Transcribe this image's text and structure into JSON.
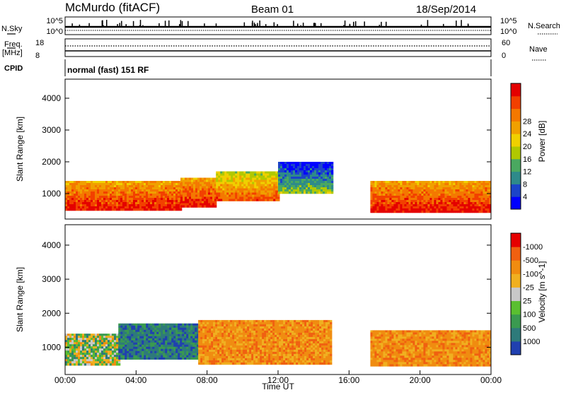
{
  "header": {
    "station": "McMurdo (fitACF)",
    "beam": "Beam 01",
    "date": "18/Sep/2014"
  },
  "top_panels": {
    "nsky_label": "N.Sky",
    "nsky_ticks": [
      "10^5",
      "10^0"
    ],
    "nsearch_label": "N.Search",
    "nsearch_ticks": [
      "10^5",
      "10^0"
    ],
    "freq_label_1": "Freq.",
    "freq_label_2": "[MHz]",
    "freq_ticks": [
      "18",
      "8"
    ],
    "nave_label": "Nave",
    "nave_ticks": [
      "60",
      "0"
    ],
    "cpid_label": "CPID",
    "cpid_value": "normal (fast) 151 RF"
  },
  "chart_data": [
    {
      "type": "heatmap",
      "title": "",
      "ylabel": "Slant Range [km]",
      "ylim": [
        200,
        4600
      ],
      "yticks": [
        "1000",
        "2000",
        "3000",
        "4000"
      ],
      "colorbar_label": "Power [dB]",
      "colorbar_ticks": [
        "4",
        "8",
        "12",
        "16",
        "20",
        "24",
        "28"
      ],
      "colorbar_colors": [
        "#0000ff",
        "#1c44c8",
        "#2e8a8a",
        "#4aa860",
        "#b0c800",
        "#f0d000",
        "#f0a000",
        "#f47800",
        "#f24000",
        "#e40000"
      ],
      "regions": [
        {
          "x_range_h": [
            0,
            6.5
          ],
          "range_km": [
            500,
            1400
          ],
          "level": "high"
        },
        {
          "x_range_h": [
            6.5,
            8.5
          ],
          "range_km": [
            600,
            1500
          ],
          "level": "high"
        },
        {
          "x_range_h": [
            8.5,
            12
          ],
          "range_km": [
            800,
            1700
          ],
          "level": "medium"
        },
        {
          "x_range_h": [
            12,
            15
          ],
          "range_km": [
            1000,
            2000
          ],
          "level": "low"
        },
        {
          "x_range_h": [
            17.2,
            24
          ],
          "range_km": [
            450,
            1400
          ],
          "level": "high"
        }
      ]
    },
    {
      "type": "heatmap",
      "title": "",
      "xlabel": "Time UT",
      "ylabel": "Slant Range [km]",
      "xticks": [
        "00:00",
        "04:00",
        "08:00",
        "12:00",
        "16:00",
        "20:00",
        "00:00"
      ],
      "ylim": [
        200,
        4600
      ],
      "yticks": [
        "1000",
        "2000",
        "3000",
        "4000"
      ],
      "colorbar_label": "Velocity [m s^-1]",
      "colorbar_ticks": [
        "1000",
        "500",
        "100",
        "25",
        "-25",
        "-100",
        "-500",
        "-1000"
      ],
      "colorbar_colors": [
        "#2040b0",
        "#2e7a7a",
        "#3a9a50",
        "#5abf30",
        "#c8c8c8",
        "#f0b020",
        "#f08c10",
        "#f06010",
        "#e60000"
      ],
      "regions": [
        {
          "x_range_h": [
            0,
            3
          ],
          "range_km": [
            500,
            1400
          ],
          "sign": "mixed"
        },
        {
          "x_range_h": [
            3,
            7.5
          ],
          "range_km": [
            700,
            1700
          ],
          "sign": "toward"
        },
        {
          "x_range_h": [
            7.5,
            15
          ],
          "range_km": [
            500,
            1800
          ],
          "sign": "away"
        },
        {
          "x_range_h": [
            17.2,
            24
          ],
          "range_km": [
            450,
            1500
          ],
          "sign": "away"
        }
      ]
    }
  ]
}
